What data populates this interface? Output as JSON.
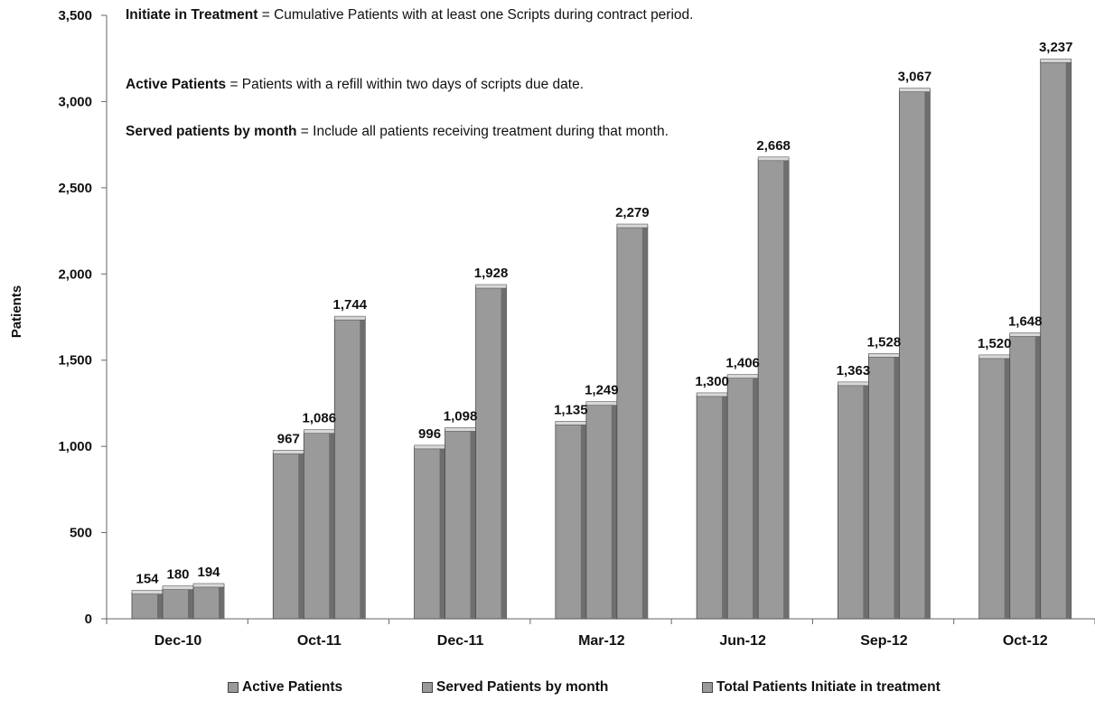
{
  "notes": [
    {
      "term": "Initiate in Treatment",
      "text": " = Cumulative Patients with at least one Scripts during contract period."
    },
    {
      "term": "Active Patients",
      "text": " = Patients with a refill within two days of scripts due date."
    },
    {
      "term": "Served patients by month",
      "text": " = Include all patients receiving treatment during that month."
    }
  ],
  "chart_data": {
    "type": "bar",
    "ylabel": "Patients",
    "ylim": [
      0,
      3500
    ],
    "yticks": [
      0,
      500,
      1000,
      1500,
      2000,
      2500,
      3000,
      3500
    ],
    "ytick_labels": [
      "0",
      "500",
      "1,000",
      "1,500",
      "2,000",
      "2,500",
      "3,000",
      "3,500"
    ],
    "categories": [
      "Dec-10",
      "Oct-11",
      "Dec-11",
      "Mar-12",
      "Jun-12",
      "Sep-12",
      "Oct-12"
    ],
    "series": [
      {
        "name": "Active Patients",
        "values": [
          154,
          967,
          996,
          1135,
          1300,
          1363,
          1520
        ],
        "labels": [
          "154",
          "967",
          "996",
          "1,135",
          "1,300",
          "1,363",
          "1,520"
        ]
      },
      {
        "name": "Served Patients by month",
        "values": [
          180,
          1086,
          1098,
          1249,
          1406,
          1528,
          1648
        ],
        "labels": [
          "180",
          "1,086",
          "1,098",
          "1,249",
          "1,406",
          "1,528",
          "1,648"
        ]
      },
      {
        "name": "Total Patients Initiate in treatment",
        "values": [
          194,
          1744,
          1928,
          2279,
          2668,
          3067,
          3237
        ],
        "labels": [
          "194",
          "1,744",
          "1,928",
          "2,279",
          "2,668",
          "3,067",
          "3,237"
        ]
      }
    ],
    "colors": {
      "bar": "#9a9a9a",
      "bar_dark": "#6e6e6e",
      "bar_top": "#d8d8d8"
    },
    "legend_position": "bottom",
    "grid": false
  }
}
